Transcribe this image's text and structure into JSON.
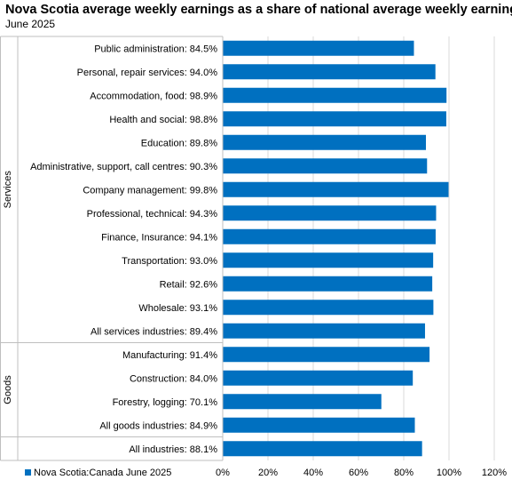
{
  "title": "Nova Scotia average weekly earnings as a share of national average weekly earnings",
  "subtitle": "June 2025",
  "chart_data": {
    "type": "bar",
    "orientation": "horizontal",
    "title": "Nova Scotia average weekly earnings as a share of national average weekly earnings",
    "subtitle": "June 2025",
    "categories": [
      "Public administration: 84.5%",
      "Personal, repair services: 94.0%",
      "Accommodation, food: 98.9%",
      "Health and social: 98.8%",
      "Education: 89.8%",
      "Administrative, support, call centres: 90.3%",
      "Company management: 99.8%",
      "Professional, technical: 94.3%",
      "Finance, Insurance: 94.1%",
      "Transportation: 93.0%",
      "Retail: 92.6%",
      "Wholesale: 93.1%",
      "All services industries: 89.4%",
      "Manufacturing: 91.4%",
      "Construction: 84.0%",
      "Forestry, logging: 70.1%",
      "All goods industries: 84.9%",
      "All industries: 88.1%"
    ],
    "series": [
      {
        "name": "Nova Scotia:Canada June 2025",
        "color": "#0070C0",
        "values": [
          84.5,
          94.0,
          98.9,
          98.8,
          89.8,
          90.3,
          99.8,
          94.3,
          94.1,
          93.0,
          92.6,
          93.1,
          89.4,
          91.4,
          84.0,
          70.1,
          84.9,
          88.1
        ]
      }
    ],
    "groups": [
      {
        "label": "Services",
        "start": 0,
        "end": 12
      },
      {
        "label": "Goods",
        "start": 13,
        "end": 16
      },
      {
        "label": "",
        "start": 17,
        "end": 17
      }
    ],
    "xlim": [
      0,
      120
    ],
    "xticks": [
      "0%",
      "20%",
      "40%",
      "60%",
      "80%",
      "100%",
      "120%"
    ],
    "xlabel": "",
    "ylabel": "",
    "grid": true,
    "legend": "bottom-left"
  }
}
